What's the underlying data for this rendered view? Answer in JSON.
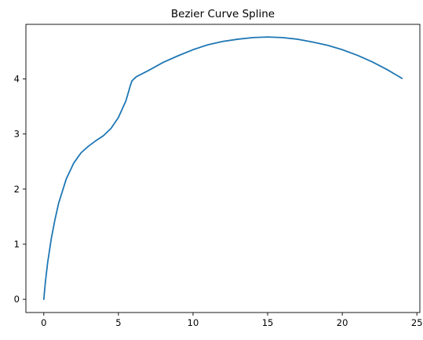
{
  "chart_data": {
    "type": "line",
    "title": "Bezier Curve Spline",
    "xlabel": "",
    "ylabel": "",
    "xlim": [
      -1.2,
      25.2
    ],
    "ylim": [
      -0.24,
      4.99
    ],
    "xticks": [
      0,
      5,
      10,
      15,
      20,
      25
    ],
    "yticks": [
      0,
      1,
      2,
      3,
      4
    ],
    "grid": false,
    "legend": "none",
    "series": [
      {
        "color": "#1f77b4",
        "points": [
          [
            0,
            0
          ],
          [
            0.1,
            0.3
          ],
          [
            0.25,
            0.65
          ],
          [
            0.5,
            1.1
          ],
          [
            0.75,
            1.45
          ],
          [
            1,
            1.75
          ],
          [
            1.5,
            2.18
          ],
          [
            2,
            2.47
          ],
          [
            2.5,
            2.66
          ],
          [
            3,
            2.78
          ],
          [
            3.5,
            2.88
          ],
          [
            4,
            2.97
          ],
          [
            4.5,
            3.1
          ],
          [
            5,
            3.3
          ],
          [
            5.5,
            3.6
          ],
          [
            5.8,
            3.88
          ],
          [
            5.9,
            3.96
          ],
          [
            6,
            3.99
          ],
          [
            6.2,
            4.04
          ],
          [
            7,
            4.15
          ],
          [
            8,
            4.3
          ],
          [
            9,
            4.42
          ],
          [
            10,
            4.53
          ],
          [
            11,
            4.62
          ],
          [
            12,
            4.68
          ],
          [
            13,
            4.72
          ],
          [
            14,
            4.75
          ],
          [
            15,
            4.76
          ],
          [
            16,
            4.75
          ],
          [
            17,
            4.72
          ],
          [
            18,
            4.67
          ],
          [
            19,
            4.61
          ],
          [
            20,
            4.53
          ],
          [
            21,
            4.43
          ],
          [
            22,
            4.31
          ],
          [
            23,
            4.17
          ],
          [
            24,
            4.01
          ]
        ]
      }
    ]
  }
}
